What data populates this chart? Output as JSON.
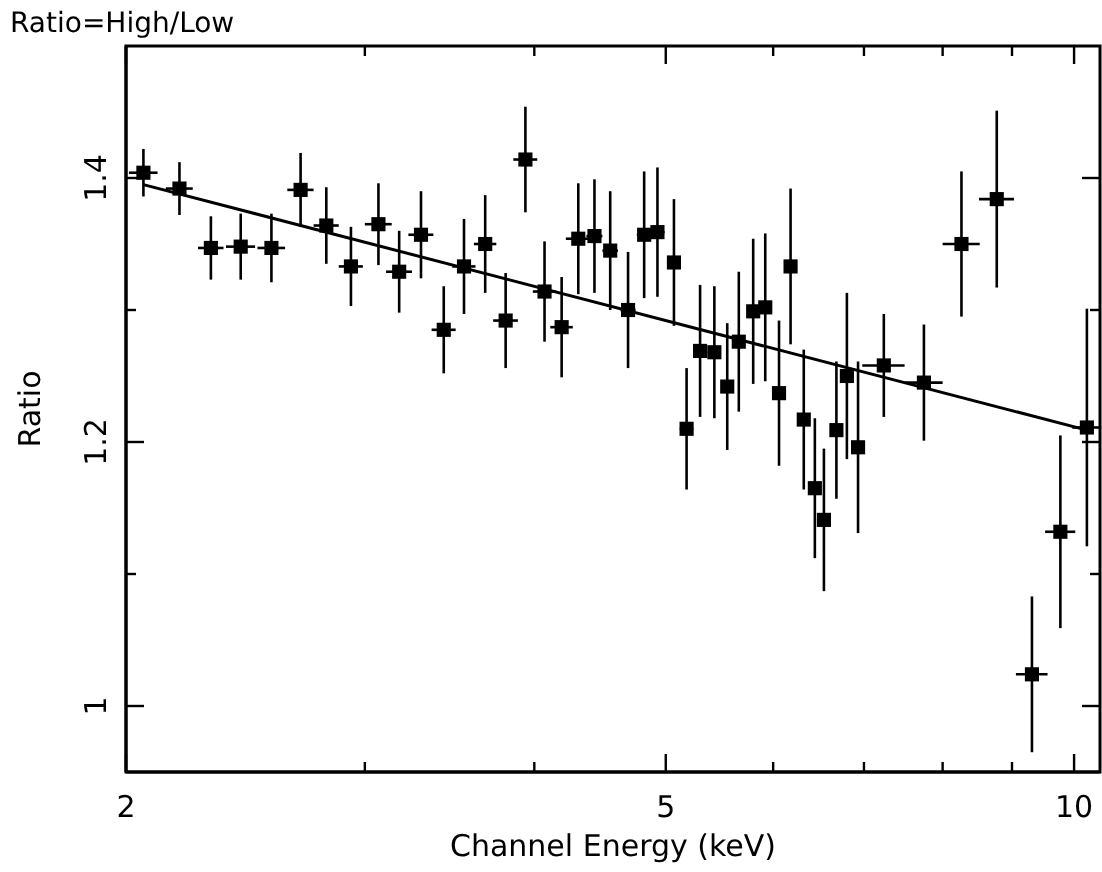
{
  "chart_data": {
    "type": "scatter",
    "title": "Ratio=High/Low",
    "xlabel": "Channel Energy (keV)",
    "ylabel": "Ratio",
    "log": "x",
    "grid": false,
    "xlim": [
      2,
      10.45
    ],
    "ylim": [
      0.95,
      1.5
    ],
    "xticks": [
      2,
      {
        "value": 3,
        "label": null
      },
      {
        "value": 4,
        "label": null
      },
      5,
      {
        "value": 6,
        "label": null
      },
      {
        "value": 7,
        "label": null
      },
      {
        "value": 8,
        "label": null
      },
      {
        "value": 9,
        "label": null
      },
      10
    ],
    "yticks": [
      1,
      {
        "value": 1.1,
        "label": null
      },
      1.2,
      {
        "value": 1.3,
        "label": null
      },
      1.4
    ],
    "series": [
      {
        "marker": "square",
        "color": "#000000",
        "x": [
          2.06,
          2.19,
          2.31,
          2.43,
          2.56,
          2.69,
          2.81,
          2.93,
          3.07,
          3.18,
          3.3,
          3.43,
          3.55,
          3.68,
          3.81,
          3.94,
          4.07,
          4.19,
          4.31,
          4.43,
          4.55,
          4.69,
          4.82,
          4.93,
          5.07,
          5.18,
          5.3,
          5.43,
          5.55,
          5.66,
          5.8,
          5.92,
          6.06,
          6.18,
          6.32,
          6.44,
          6.54,
          6.68,
          6.8,
          6.93,
          7.24,
          7.75,
          8.26,
          8.77,
          9.31,
          9.77,
          10.22
        ],
        "values": [
          1.404,
          1.392,
          1.347,
          1.348,
          1.347,
          1.391,
          1.364,
          1.333,
          1.365,
          1.329,
          1.357,
          1.285,
          1.333,
          1.35,
          1.292,
          1.414,
          1.314,
          1.287,
          1.354,
          1.356,
          1.345,
          1.3,
          1.357,
          1.359,
          1.336,
          1.21,
          1.269,
          1.268,
          1.242,
          1.276,
          1.299,
          1.302,
          1.237,
          1.333,
          1.217,
          1.165,
          1.141,
          1.209,
          1.25,
          1.196,
          1.258,
          1.245,
          1.35,
          1.384,
          1.024,
          1.132,
          1.211
        ],
        "errors": [
          0.018,
          0.02,
          0.024,
          0.025,
          0.026,
          0.028,
          0.029,
          0.03,
          0.031,
          0.031,
          0.033,
          0.033,
          0.036,
          0.037,
          0.036,
          0.04,
          0.038,
          0.038,
          0.042,
          0.043,
          0.045,
          0.044,
          0.048,
          0.049,
          0.048,
          0.046,
          0.05,
          0.05,
          0.048,
          0.053,
          0.055,
          0.056,
          0.055,
          0.059,
          0.053,
          0.053,
          0.054,
          0.052,
          0.063,
          0.065,
          0.039,
          0.044,
          0.055,
          0.067,
          0.059,
          0.073,
          0.09
        ],
        "xerrors": [
          0.05,
          0.05,
          0.05,
          0.06,
          0.06,
          0.06,
          0.06,
          0.06,
          0.07,
          0.07,
          0.07,
          0.07,
          0.07,
          0.07,
          0.08,
          0.08,
          0.08,
          0.08,
          0.09,
          0.06,
          0.06,
          0.06,
          0.06,
          0.06,
          0.06,
          0.06,
          0.06,
          0.06,
          0.06,
          0.06,
          0.06,
          0.06,
          0.06,
          0.06,
          0.06,
          0.06,
          0.06,
          0.06,
          0.06,
          0.06,
          0.26,
          0.25,
          0.26,
          0.26,
          0.25,
          0.25,
          0.25
        ]
      },
      {
        "type": "line",
        "color": "#000000",
        "x": [
          2.06,
          10.22
        ],
        "values": [
          1.395,
          1.209
        ]
      }
    ]
  }
}
